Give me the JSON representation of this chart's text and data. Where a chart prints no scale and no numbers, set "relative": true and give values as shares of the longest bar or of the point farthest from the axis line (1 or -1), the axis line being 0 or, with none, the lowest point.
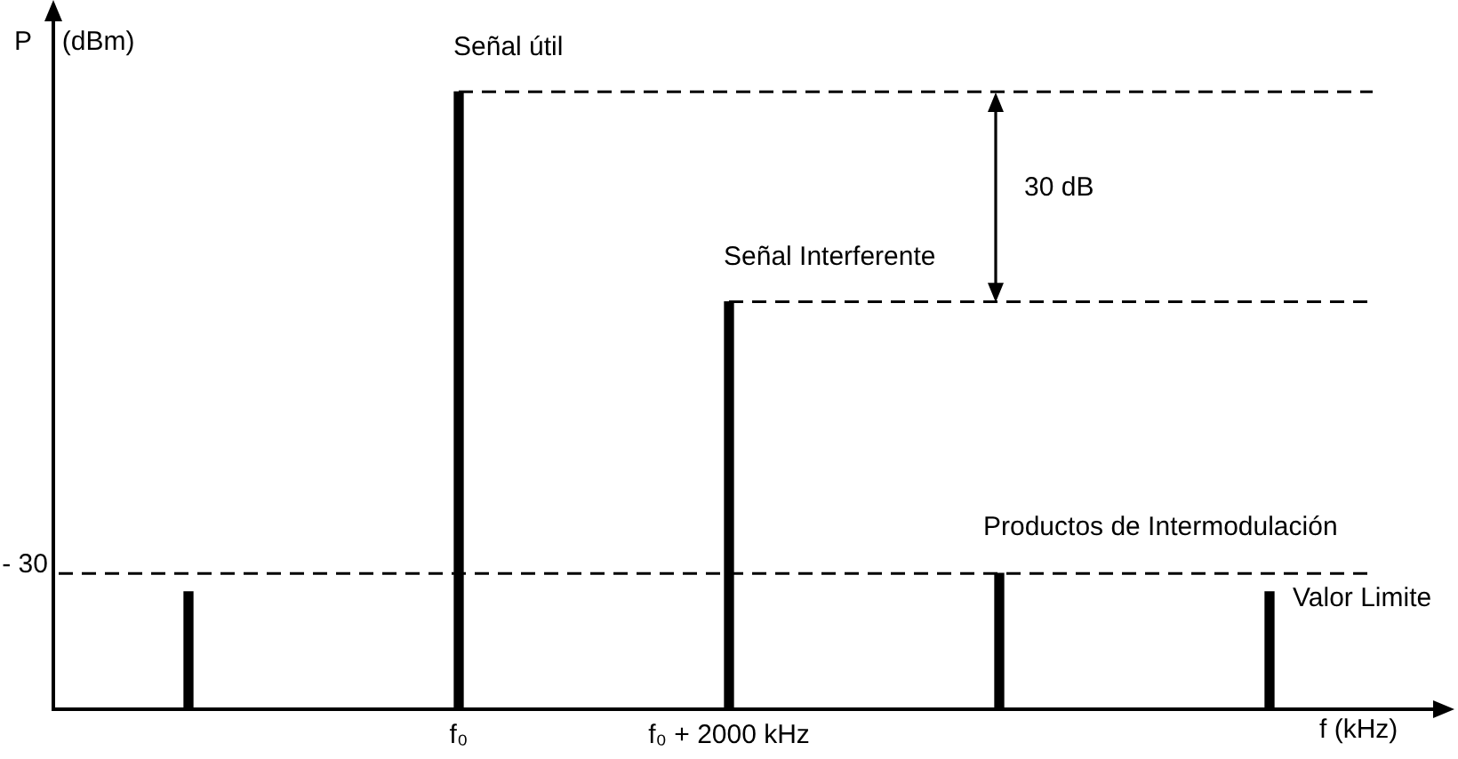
{
  "chart_data": {
    "type": "bar",
    "xlabel": "f (kHz)",
    "ylabel": "P (dBm)",
    "categories": [
      null,
      "f₀",
      "f₀ + 2000 kHz",
      null,
      null
    ],
    "values": [
      0.19,
      1,
      0.66,
      0.22,
      0.19
    ],
    "color": "#000000",
    "relative": true,
    "ref_lines": [
      {
        "axis": "y",
        "value": 1,
        "color": "#000000",
        "line_style": "dashed"
      },
      {
        "axis": "y",
        "value": 0.66,
        "color": "#000000",
        "line_style": "dashed"
      },
      {
        "axis": "y",
        "value": 0.22,
        "color": "#000000",
        "line_style": "dashed"
      }
    ],
    "annotations": [
      {
        "text": "Señal útil",
        "x": "f₀",
        "y": 1
      },
      "30 dB",
      {
        "text": "Señal Interferente",
        "x": "f₀ + 2000 kHz",
        "y": 0.66
      },
      "Productos de Intermodulación",
      "- 30",
      "Valor Limite"
    ]
  }
}
